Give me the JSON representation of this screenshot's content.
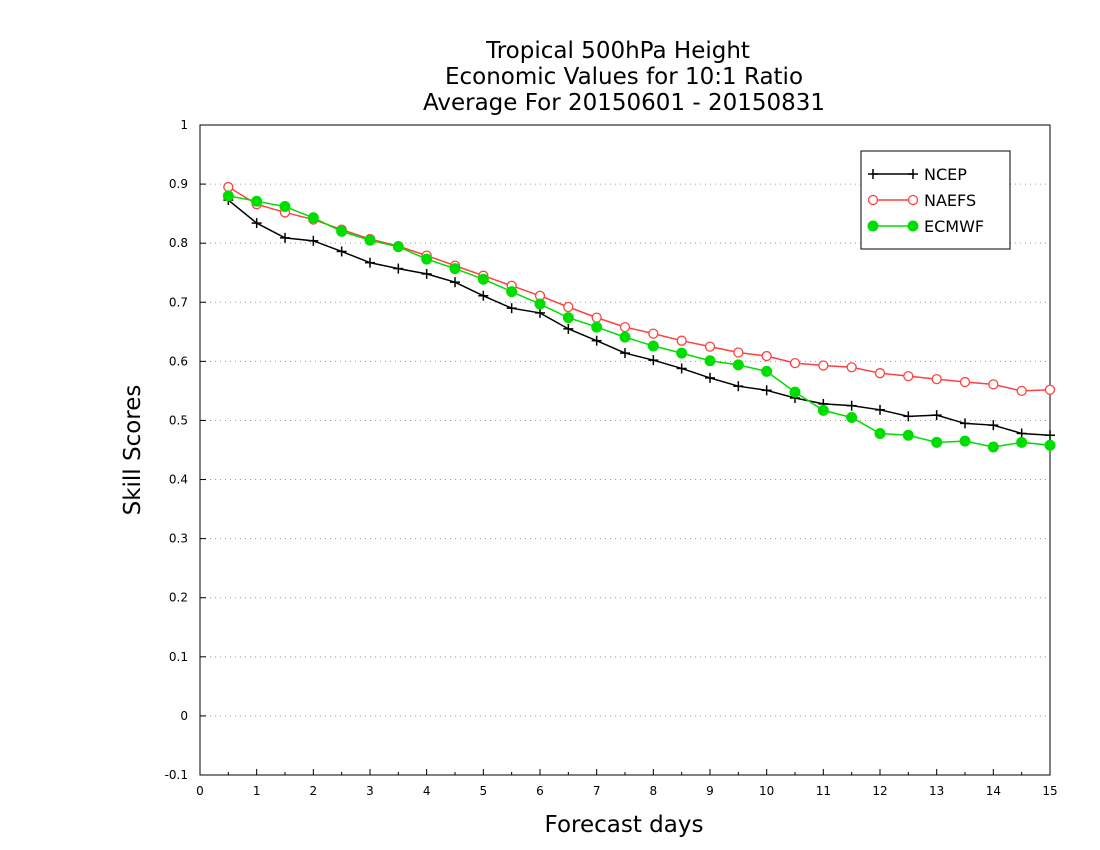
{
  "chart_data": {
    "type": "line",
    "title_lines": [
      "Tropical 500hPa Height",
      "Economic Values for 10:1 Ratio",
      "Average For 20150601 - 20150831"
    ],
    "xlabel": "Forecast days",
    "ylabel": "Skill Scores",
    "xlim": [
      0,
      15
    ],
    "ylim": [
      -0.1,
      1
    ],
    "x_ticks": [
      0,
      1,
      2,
      3,
      4,
      5,
      6,
      7,
      8,
      9,
      10,
      11,
      12,
      13,
      14,
      15
    ],
    "x_tick_labels": [
      "0",
      "1",
      "2",
      "3",
      "4",
      "5",
      "6",
      "7",
      "8",
      "9",
      "10",
      "11",
      "12",
      "13",
      "14",
      "15"
    ],
    "y_ticks": [
      -0.1,
      0,
      0.1,
      0.2,
      0.3,
      0.4,
      0.5,
      0.6,
      0.7,
      0.8,
      0.9,
      1
    ],
    "y_tick_labels": [
      "-0.1",
      "0",
      "0.1",
      "0.2",
      "0.3",
      "0.4",
      "0.5",
      "0.6",
      "0.7",
      "0.8",
      "0.9",
      "1"
    ],
    "grid": "horizontal dotted",
    "legend_position": "top-right",
    "x": [
      0.5,
      1,
      1.5,
      2,
      2.5,
      3,
      3.5,
      4,
      4.5,
      5,
      5.5,
      6,
      6.5,
      7,
      7.5,
      8,
      8.5,
      9,
      9.5,
      10,
      10.5,
      11,
      11.5,
      12,
      12.5,
      13,
      13.5,
      14,
      14.5,
      15
    ],
    "series": [
      {
        "name": "NCEP",
        "color": "#000000",
        "marker": "plus",
        "values": [
          0.873,
          0.834,
          0.809,
          0.804,
          0.786,
          0.767,
          0.757,
          0.748,
          0.734,
          0.711,
          0.69,
          0.682,
          0.655,
          0.635,
          0.614,
          0.602,
          0.588,
          0.572,
          0.558,
          0.551,
          0.538,
          0.528,
          0.525,
          0.518,
          0.507,
          0.509,
          0.495,
          0.492,
          0.478,
          0.475
        ]
      },
      {
        "name": "NAEFS",
        "color": "#ff4040",
        "marker": "open-circle",
        "values": [
          0.895,
          0.866,
          0.852,
          0.84,
          0.823,
          0.807,
          0.795,
          0.779,
          0.762,
          0.745,
          0.728,
          0.711,
          0.692,
          0.674,
          0.658,
          0.647,
          0.635,
          0.625,
          0.615,
          0.609,
          0.597,
          0.593,
          0.59,
          0.58,
          0.575,
          0.57,
          0.565,
          0.561,
          0.55,
          0.552
        ]
      },
      {
        "name": "ECMWF",
        "color": "#00dd00",
        "marker": "filled-circle",
        "values": [
          0.88,
          0.871,
          0.862,
          0.843,
          0.82,
          0.805,
          0.794,
          0.773,
          0.757,
          0.739,
          0.718,
          0.697,
          0.674,
          0.658,
          0.641,
          0.626,
          0.614,
          0.601,
          0.594,
          0.583,
          0.548,
          0.517,
          0.505,
          0.478,
          0.475,
          0.463,
          0.465,
          0.455,
          0.463,
          0.458
        ]
      }
    ]
  }
}
